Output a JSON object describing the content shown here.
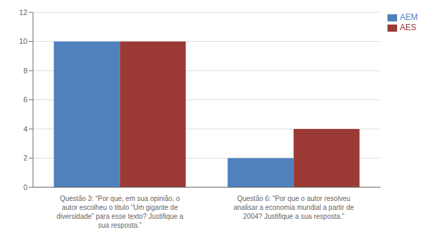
{
  "chart_data": {
    "type": "bar",
    "categories": [
      "Questão 3: “Por que, em sua opinião, o\nautor escolheu o titulo “Um gigante de\ndiversidade” para esse texto? Justifique a\nsua resposta.”",
      "Questão 6: “Por que o autor resolveu\nanalisar a economia mundial a partir de\n2004? Justifique a sua resposta.”"
    ],
    "series": [
      {
        "name": "AEM",
        "color": "#4F81BD",
        "values": [
          10,
          2
        ]
      },
      {
        "name": "AES",
        "color": "#9B3A35",
        "values": [
          10,
          4
        ]
      }
    ],
    "ylim": [
      0,
      12
    ],
    "yticks": [
      0,
      2,
      4,
      6,
      8,
      10,
      12
    ],
    "grid": true,
    "legend": "upper right"
  }
}
